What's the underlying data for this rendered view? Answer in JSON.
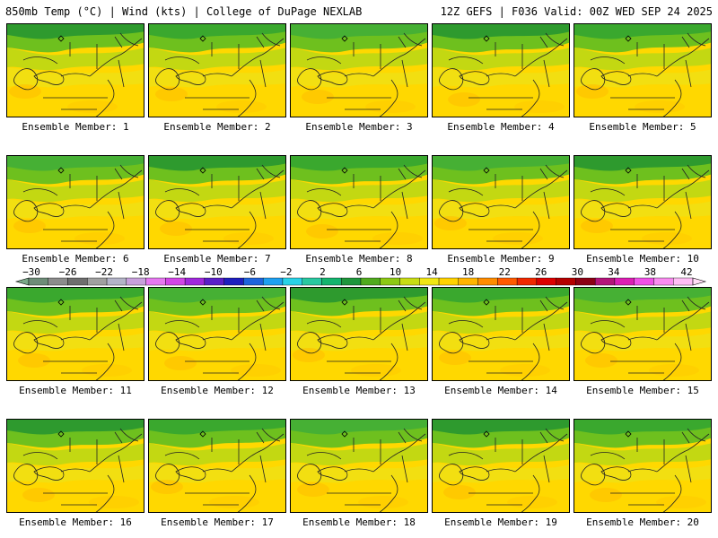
{
  "header": {
    "left": "850mb Temp (°C) | Wind (kts) | College of DuPage NEXLAB",
    "right": "12Z GEFS | F036 Valid: 00Z WED SEP 24 2025"
  },
  "members": [
    {
      "label": "Ensemble Member: 1"
    },
    {
      "label": "Ensemble Member: 2"
    },
    {
      "label": "Ensemble Member: 3"
    },
    {
      "label": "Ensemble Member: 4"
    },
    {
      "label": "Ensemble Member: 5"
    },
    {
      "label": "Ensemble Member: 6"
    },
    {
      "label": "Ensemble Member: 7"
    },
    {
      "label": "Ensemble Member: 8"
    },
    {
      "label": "Ensemble Member: 9"
    },
    {
      "label": "Ensemble Member: 10"
    },
    {
      "label": "Ensemble Member: 11"
    },
    {
      "label": "Ensemble Member: 12"
    },
    {
      "label": "Ensemble Member: 13"
    },
    {
      "label": "Ensemble Member: 14"
    },
    {
      "label": "Ensemble Member: 15"
    },
    {
      "label": "Ensemble Member: 16"
    },
    {
      "label": "Ensemble Member: 17"
    },
    {
      "label": "Ensemble Member: 18"
    },
    {
      "label": "Ensemble Member: 19"
    },
    {
      "label": "Ensemble Member: 20"
    }
  ],
  "colorbar": {
    "labels": [
      "−30",
      "−26",
      "−22",
      "−18",
      "−14",
      "−10",
      "−6",
      "−2",
      "2",
      "6",
      "10",
      "14",
      "18",
      "22",
      "26",
      "30",
      "34",
      "38",
      "42"
    ],
    "colors": [
      "#6e8c78",
      "#8c8c8c",
      "#6e6e6e",
      "#a0a0a0",
      "#b4b4c8",
      "#c8a0dc",
      "#e678f0",
      "#d246e6",
      "#a028dc",
      "#5a1ec8",
      "#1e1ebe",
      "#1e64dc",
      "#1ea0f0",
      "#28d2e6",
      "#28c8a0",
      "#14b46e",
      "#1e963c",
      "#50aa1e",
      "#8cc814",
      "#c8dc14",
      "#f0e614",
      "#ffd200",
      "#ffb400",
      "#ff8c00",
      "#ff5a00",
      "#f02800",
      "#dc0000",
      "#b40000",
      "#8c0014",
      "#b4147a",
      "#dc1eb4",
      "#f050e6",
      "#fa8cf0",
      "#ffbef5"
    ]
  }
}
